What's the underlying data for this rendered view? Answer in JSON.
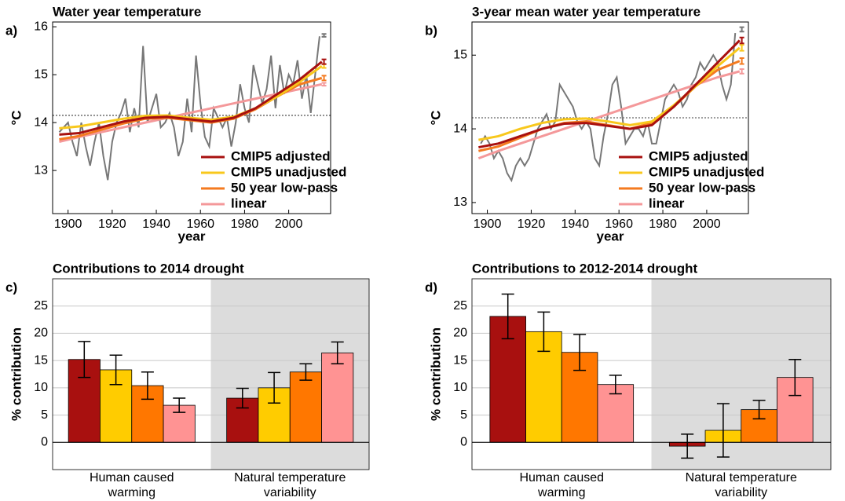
{
  "chart_data": [
    {
      "type": "line",
      "panel_label": "a)",
      "title": "Water year temperature",
      "xlabel": "year",
      "ylabel": "°C",
      "xlim": [
        1893,
        2019
      ],
      "xticks": [
        1900,
        1920,
        1940,
        1960,
        1980,
        2000
      ],
      "ylim": [
        12.1,
        16.1
      ],
      "yticks": [
        13,
        14,
        15,
        16
      ],
      "reference": 14.15,
      "legend": "lower right",
      "end_x": 2016,
      "series": [
        {
          "color": "#777777",
          "x": [
            1896,
            1898,
            1900,
            1902,
            1904,
            1906,
            1908,
            1910,
            1912,
            1914,
            1916,
            1918,
            1920,
            1922,
            1924,
            1926,
            1928,
            1930,
            1932,
            1934,
            1936,
            1938,
            1940,
            1942,
            1944,
            1946,
            1948,
            1950,
            1952,
            1954,
            1956,
            1958,
            1960,
            1962,
            1964,
            1966,
            1968,
            1970,
            1972,
            1974,
            1976,
            1978,
            1980,
            1982,
            1984,
            1986,
            1988,
            1990,
            1992,
            1994,
            1996,
            1998,
            2000,
            2002,
            2004,
            2006,
            2008,
            2010,
            2012,
            2014
          ],
          "values": [
            13.8,
            13.9,
            14.0,
            13.6,
            13.3,
            14.0,
            13.5,
            13.1,
            13.6,
            14.0,
            13.3,
            12.8,
            13.6,
            14.0,
            14.2,
            14.5,
            13.8,
            14.3,
            13.9,
            15.6,
            14.0,
            14.3,
            14.6,
            13.9,
            14.0,
            14.2,
            13.9,
            13.3,
            13.6,
            14.5,
            13.8,
            15.4,
            14.4,
            13.7,
            13.5,
            14.3,
            14.1,
            13.9,
            14.1,
            13.5,
            14.0,
            14.8,
            14.3,
            14.0,
            15.2,
            14.8,
            14.4,
            14.7,
            15.4,
            14.3,
            15.2,
            14.6,
            15.0,
            14.8,
            15.3,
            14.5,
            15.0,
            14.2,
            15.0,
            15.8
          ],
          "end": [
            15.82,
            0.03
          ]
        },
        {
          "name": "linear",
          "color": "#f4989a",
          "x": [
            1896,
            1905,
            1915,
            1925,
            1935,
            1945,
            1955,
            1965,
            1975,
            1985,
            1995,
            2005,
            2015
          ],
          "values": [
            13.6,
            13.7,
            13.8,
            13.9,
            14.0,
            14.1,
            14.2,
            14.3,
            14.4,
            14.5,
            14.6,
            14.7,
            14.8
          ],
          "end": [
            14.8,
            0.03
          ]
        },
        {
          "name": "50 year low-pass",
          "color": "#f47a1f",
          "x": [
            1896,
            1905,
            1915,
            1925,
            1935,
            1945,
            1955,
            1965,
            1975,
            1985,
            1995,
            2005,
            2015
          ],
          "values": [
            13.65,
            13.72,
            13.85,
            13.98,
            14.08,
            14.1,
            14.05,
            14.0,
            14.08,
            14.28,
            14.55,
            14.8,
            14.93
          ],
          "end": [
            14.93,
            0.05
          ]
        },
        {
          "name": "CMIP5 unadjusted",
          "color": "#f8c81c",
          "x": [
            1896,
            1905,
            1915,
            1925,
            1935,
            1945,
            1955,
            1965,
            1975,
            1985,
            1995,
            2005,
            2015
          ],
          "values": [
            13.88,
            13.92,
            14.0,
            14.08,
            14.14,
            14.15,
            14.1,
            14.06,
            14.12,
            14.3,
            14.55,
            14.85,
            15.18
          ],
          "end": [
            15.18,
            0.04
          ]
        },
        {
          "name": "CMIP5 adjusted",
          "color": "#a8100f",
          "x": [
            1896,
            1905,
            1915,
            1925,
            1935,
            1945,
            1955,
            1965,
            1975,
            1985,
            1995,
            2005,
            2015
          ],
          "values": [
            13.75,
            13.78,
            13.9,
            14.02,
            14.1,
            14.12,
            14.07,
            14.02,
            14.1,
            14.3,
            14.6,
            14.9,
            15.27
          ],
          "end": [
            15.27,
            0.05
          ]
        }
      ]
    },
    {
      "type": "line",
      "panel_label": "b)",
      "title": "3-year mean water year temperature",
      "xlabel": "year",
      "ylabel": "°C",
      "xlim": [
        1893,
        2019
      ],
      "xticks": [
        1900,
        1920,
        1940,
        1960,
        1980,
        2000
      ],
      "ylim": [
        12.85,
        15.45
      ],
      "yticks": [
        13,
        14,
        15
      ],
      "reference": 14.15,
      "legend": "lower right",
      "end_x": 2016,
      "series": [
        {
          "color": "#777777",
          "x": [
            1897,
            1899,
            1901,
            1903,
            1905,
            1907,
            1909,
            1911,
            1913,
            1915,
            1917,
            1919,
            1921,
            1923,
            1925,
            1927,
            1929,
            1931,
            1933,
            1935,
            1937,
            1939,
            1941,
            1943,
            1945,
            1947,
            1949,
            1951,
            1953,
            1955,
            1957,
            1959,
            1961,
            1963,
            1965,
            1967,
            1969,
            1971,
            1973,
            1975,
            1977,
            1979,
            1981,
            1983,
            1985,
            1987,
            1989,
            1991,
            1993,
            1995,
            1997,
            1999,
            2001,
            2003,
            2005,
            2007,
            2009,
            2011,
            2013
          ],
          "values": [
            13.8,
            13.9,
            13.8,
            13.6,
            13.7,
            13.6,
            13.4,
            13.3,
            13.5,
            13.6,
            13.5,
            13.6,
            13.8,
            14.0,
            14.1,
            14.2,
            14.0,
            14.1,
            14.6,
            14.5,
            14.4,
            14.3,
            14.1,
            14.0,
            14.1,
            14.0,
            13.6,
            13.5,
            13.9,
            14.2,
            14.6,
            14.7,
            14.3,
            13.8,
            13.9,
            14.0,
            14.0,
            13.9,
            14.1,
            13.8,
            13.8,
            14.1,
            14.4,
            14.5,
            14.6,
            14.5,
            14.3,
            14.4,
            14.6,
            14.7,
            14.9,
            14.8,
            14.9,
            15.0,
            14.9,
            14.6,
            14.4,
            14.6,
            15.3
          ],
          "end": [
            15.35,
            0.03
          ]
        },
        {
          "name": "linear",
          "color": "#f4989a",
          "x": [
            1896,
            1905,
            1915,
            1925,
            1935,
            1945,
            1955,
            1965,
            1975,
            1985,
            1995,
            2005,
            2015
          ],
          "values": [
            13.6,
            13.7,
            13.8,
            13.9,
            14.0,
            14.1,
            14.2,
            14.3,
            14.4,
            14.5,
            14.6,
            14.7,
            14.78
          ],
          "end": [
            14.78,
            0.03
          ]
        },
        {
          "name": "50 year low-pass",
          "color": "#f47a1f",
          "x": [
            1896,
            1905,
            1915,
            1925,
            1935,
            1945,
            1955,
            1965,
            1975,
            1985,
            1995,
            2005,
            2015
          ],
          "values": [
            13.7,
            13.76,
            13.88,
            14.0,
            14.08,
            14.1,
            14.05,
            14.0,
            14.08,
            14.3,
            14.58,
            14.8,
            14.92
          ],
          "end": [
            14.92,
            0.04
          ]
        },
        {
          "name": "CMIP5 unadjusted",
          "color": "#f8c81c",
          "x": [
            1896,
            1905,
            1915,
            1925,
            1935,
            1945,
            1955,
            1965,
            1975,
            1985,
            1995,
            2005,
            2015
          ],
          "values": [
            13.85,
            13.9,
            14.0,
            14.08,
            14.13,
            14.14,
            14.1,
            14.05,
            14.1,
            14.32,
            14.58,
            14.85,
            15.1
          ],
          "end": [
            15.1,
            0.04
          ]
        },
        {
          "name": "CMIP5 adjusted",
          "color": "#a8100f",
          "x": [
            1896,
            1905,
            1915,
            1925,
            1935,
            1945,
            1955,
            1965,
            1975,
            1985,
            1995,
            2005,
            2015
          ],
          "values": [
            13.75,
            13.8,
            13.9,
            14.0,
            14.07,
            14.08,
            14.04,
            14.0,
            14.05,
            14.3,
            14.6,
            14.9,
            15.2
          ],
          "end": [
            15.2,
            0.04
          ]
        }
      ]
    },
    {
      "type": "bar",
      "panel_label": "c)",
      "title": "Contributions to 2014 drought",
      "ylabel": "% contribution",
      "categories": [
        [
          "Human caused",
          "warming"
        ],
        [
          "Natural temperature",
          "variability"
        ]
      ],
      "shaded_group": 1,
      "ylim": [
        -5,
        30
      ],
      "yticks": [
        0,
        5,
        10,
        15,
        20,
        25
      ],
      "grid": true,
      "series": [
        {
          "color": "#a8100f",
          "values": [
            15.2,
            8.1
          ],
          "errors": [
            3.3,
            1.8
          ]
        },
        {
          "color": "#ffcc00",
          "values": [
            13.3,
            10.0
          ],
          "errors": [
            2.7,
            2.8
          ]
        },
        {
          "color": "#ff7700",
          "values": [
            10.4,
            12.9
          ],
          "errors": [
            2.5,
            1.5
          ]
        },
        {
          "color": "#ff9393",
          "values": [
            6.8,
            16.4
          ],
          "errors": [
            1.3,
            2.0
          ]
        }
      ]
    },
    {
      "type": "bar",
      "panel_label": "d)",
      "title": "Contributions to 2012-2014 drought",
      "ylabel": "% contribution",
      "categories": [
        [
          "Human caused",
          "warming"
        ],
        [
          "Natural temperature",
          "variability"
        ]
      ],
      "shaded_group": 1,
      "ylim": [
        -5,
        30
      ],
      "yticks": [
        0,
        5,
        10,
        15,
        20,
        25
      ],
      "grid": true,
      "series": [
        {
          "color": "#a8100f",
          "values": [
            23.1,
            -0.7
          ],
          "errors": [
            4.1,
            2.2
          ]
        },
        {
          "color": "#ffcc00",
          "values": [
            20.3,
            2.2
          ],
          "errors": [
            3.6,
            4.9
          ]
        },
        {
          "color": "#ff7700",
          "values": [
            16.5,
            6.0
          ],
          "errors": [
            3.3,
            1.7
          ]
        },
        {
          "color": "#ff9393",
          "values": [
            10.6,
            11.9
          ],
          "errors": [
            1.7,
            3.3
          ]
        }
      ]
    }
  ]
}
